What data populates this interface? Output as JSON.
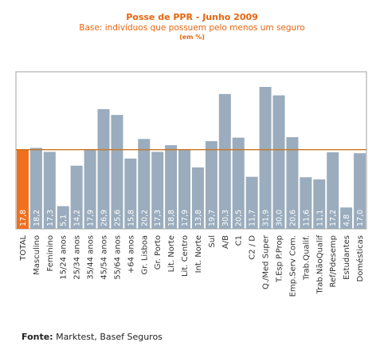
{
  "chart_data": {
    "type": "bar",
    "title": "Posse de PPR - Junho 2009",
    "subtitle": "Base: indivíduos que possuem pelo menos um seguro",
    "unit": "(em %)",
    "categories": [
      "TOTAL",
      "Masculino",
      "Feminino",
      "15/24 anos",
      "25/34 anos",
      "35/44 anos",
      "45/54 anos",
      "55/64 anos",
      "+64 anos",
      "Gr. Lisboa",
      "Gr. Porto",
      "Lit. Norte",
      "Lit. Centro",
      "Int. Norte",
      "Sul",
      "A/B",
      "C1",
      "C2 / D",
      "Q./Med Super",
      "T.Esp P.Prop",
      "Emp.Serv Com.",
      "Trab.Qualif.",
      "Trab.NãoQualif",
      "Ref/Pdesemp",
      "Estudantes",
      "Domésticas"
    ],
    "values": [
      17.8,
      18.2,
      17.3,
      5.1,
      14.2,
      17.9,
      26.9,
      25.6,
      15.8,
      20.2,
      17.3,
      18.8,
      17.9,
      13.8,
      19.7,
      30.3,
      20.5,
      11.7,
      31.9,
      30.0,
      20.6,
      11.6,
      11.1,
      17.2,
      4.8,
      17.0
    ],
    "value_labels": [
      "17,8",
      "18,2",
      "17,3",
      "5,1",
      "14,2",
      "17,9",
      "26,9",
      "25,6",
      "15,8",
      "20,2",
      "17,3",
      "18,8",
      "17,9",
      "13,8",
      "19,7",
      "30,3",
      "20,5",
      "11,7",
      "31,9",
      "30,0",
      "20,6",
      "11,6",
      "11,1",
      "17,2",
      "4,8",
      "17,0"
    ],
    "reference_line": 17.8,
    "ylim": [
      0,
      35
    ],
    "colors": {
      "total_bar": "#f07020",
      "bar": "#9aacbd",
      "reference_line": "#c8761e",
      "frame": "#a0a0a0",
      "value_text": "#ffffff"
    }
  },
  "source": {
    "label": "Fonte:",
    "text": " Marktest, Basef Seguros"
  }
}
